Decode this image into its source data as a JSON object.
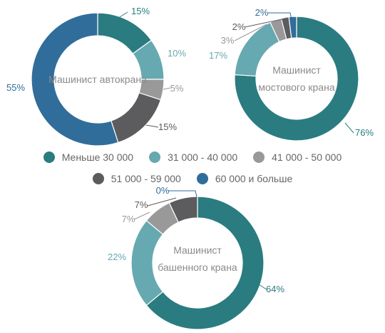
{
  "legend": {
    "items": [
      {
        "label": "Меньше 30 000",
        "color": "#2a7c80"
      },
      {
        "label": "31 000 - 40 000",
        "color": "#66a9b0"
      },
      {
        "label": "41 000 - 50 000",
        "color": "#999999"
      },
      {
        "label": "51 000 - 59 000",
        "color": "#5c5c5e"
      },
      {
        "label": "60 000 и больше",
        "color": "#316d9a"
      }
    ]
  },
  "chart_data": [
    {
      "type": "pie",
      "title": "Машинист автокрана",
      "categories": [
        "Меньше 30 000",
        "31 000 - 40 000",
        "41 000 - 50 000",
        "51 000 - 59 000",
        "60 000 и больше"
      ],
      "values": [
        15,
        10,
        5,
        15,
        55
      ],
      "labels": [
        "15%",
        "10%",
        "5%",
        "15%",
        "55%"
      ]
    },
    {
      "type": "pie",
      "title": "Машинист мостового крана",
      "categories": [
        "Меньше 30 000",
        "31 000 - 40 000",
        "41 000 - 50 000",
        "51 000 - 59 000",
        "60 000 и больше"
      ],
      "values": [
        76,
        17,
        3,
        2,
        2
      ],
      "labels": [
        "76%",
        "17%",
        "3%",
        "2%",
        "2%"
      ]
    },
    {
      "type": "pie",
      "title": "Машинист башенного крана",
      "categories": [
        "Меньше 30 000",
        "31 000 - 40 000",
        "41 000 - 50 000",
        "51 000 - 59 000",
        "60 000 и больше"
      ],
      "values": [
        64,
        22,
        7,
        7,
        0
      ],
      "labels": [
        "64%",
        "22%",
        "7%",
        "7%",
        "0%"
      ]
    }
  ]
}
